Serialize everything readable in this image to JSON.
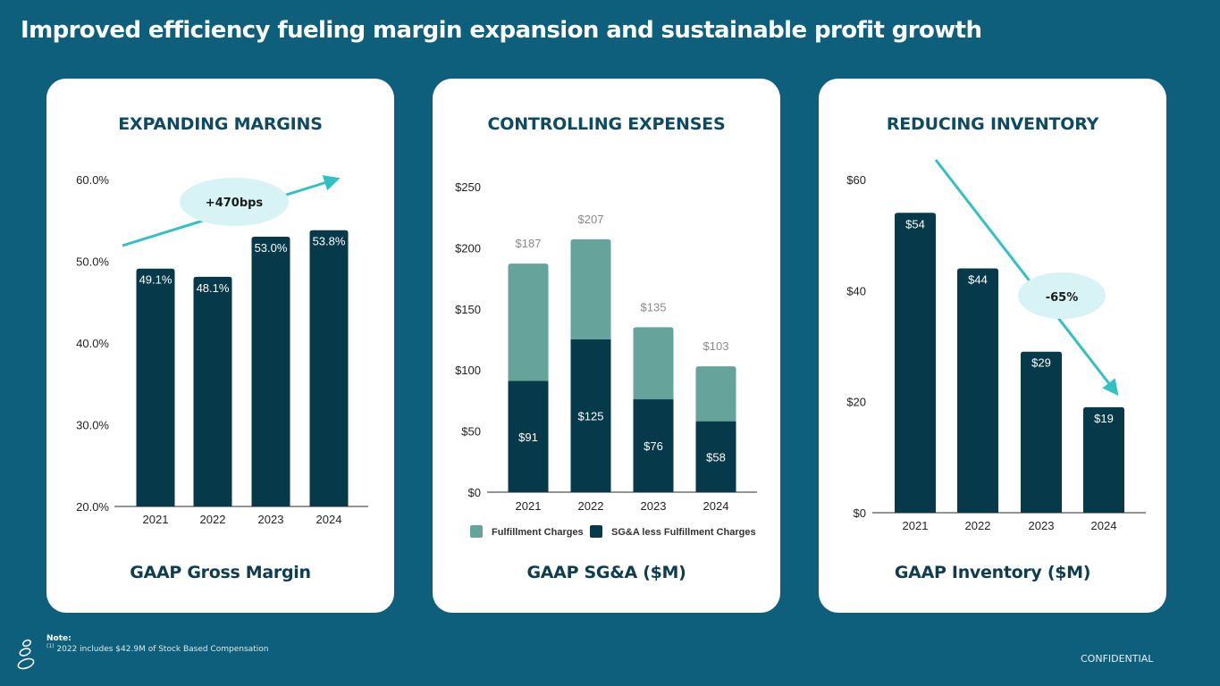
{
  "slide": {
    "title": "Improved efficiency fueling margin expansion and sustainable profit growth",
    "confidential_label": "CONFIDENTIAL",
    "note_title": "Note:",
    "note_marker": "(1)",
    "note_text": "2022 includes $42.9M of Stock Based Compensation",
    "logo_icon": "stacked-stones-logo-icon"
  },
  "colors": {
    "background": "#0e5f7c",
    "card": "#ffffff",
    "heading": "#0e4a61",
    "bar_dark": "#063a4b",
    "bar_light": "#65a39b",
    "arrow": "#31c1c4",
    "bubble": "#d8f3f6"
  },
  "cards": [
    {
      "heading": "EXPANDING MARGINS",
      "footer": "GAAP Gross Margin",
      "callout": "+470bps"
    },
    {
      "heading": "CONTROLLING EXPENSES",
      "footer": "GAAP SG&A ($M)"
    },
    {
      "heading": "REDUCING INVENTORY",
      "footer": "GAAP Inventory ($M)",
      "callout": "-65%"
    }
  ],
  "chart_data": [
    {
      "type": "bar",
      "title": "GAAP Gross Margin",
      "categories": [
        "2021",
        "2022",
        "2023",
        "2024"
      ],
      "values": [
        49.1,
        48.1,
        53.0,
        53.8
      ],
      "value_labels": [
        "49.1%",
        "48.1%",
        "53.0%",
        "53.8%"
      ],
      "ylim": [
        20,
        60
      ],
      "yticks": [
        20,
        30,
        40,
        50,
        60
      ],
      "ytick_labels": [
        "20.0%",
        "30.0%",
        "40.0%",
        "50.0%",
        "60.0%"
      ],
      "annotation": "+470bps",
      "grid": false,
      "xlabel": "",
      "ylabel": ""
    },
    {
      "type": "bar",
      "stacked": true,
      "title": "GAAP SG&A ($M)",
      "categories": [
        "2021",
        "2022",
        "2023",
        "2024"
      ],
      "series": [
        {
          "name": "SG&A less Fulfillment Charges",
          "values": [
            91,
            125,
            76,
            58
          ],
          "labels": [
            "$91",
            "$125",
            "$76",
            "$58"
          ]
        },
        {
          "name": "Fulfillment Charges",
          "values": [
            96,
            82,
            59,
            45
          ]
        }
      ],
      "totals": [
        187,
        207,
        135,
        103
      ],
      "total_labels": [
        "$187",
        "$207",
        "$135",
        "$103"
      ],
      "ylim": [
        0,
        250
      ],
      "yticks": [
        0,
        50,
        100,
        150,
        200,
        250
      ],
      "ytick_labels": [
        "$0",
        "$50",
        "$100",
        "$150",
        "$200",
        "$250"
      ],
      "legend": [
        "Fulfillment Charges",
        "SG&A less Fulfillment Charges"
      ],
      "legend_position": "bottom",
      "grid": false,
      "xlabel": "",
      "ylabel": ""
    },
    {
      "type": "bar",
      "title": "GAAP Inventory ($M)",
      "categories": [
        "2021",
        "2022",
        "2023",
        "2024"
      ],
      "values": [
        54,
        44,
        29,
        19
      ],
      "value_labels": [
        "$54",
        "$44",
        "$29",
        "$19"
      ],
      "ylim": [
        0,
        60
      ],
      "yticks": [
        0,
        20,
        40,
        60
      ],
      "ytick_labels": [
        "$0",
        "$20",
        "$40",
        "$60"
      ],
      "annotation": "-65%",
      "grid": false,
      "xlabel": "",
      "ylabel": ""
    }
  ]
}
